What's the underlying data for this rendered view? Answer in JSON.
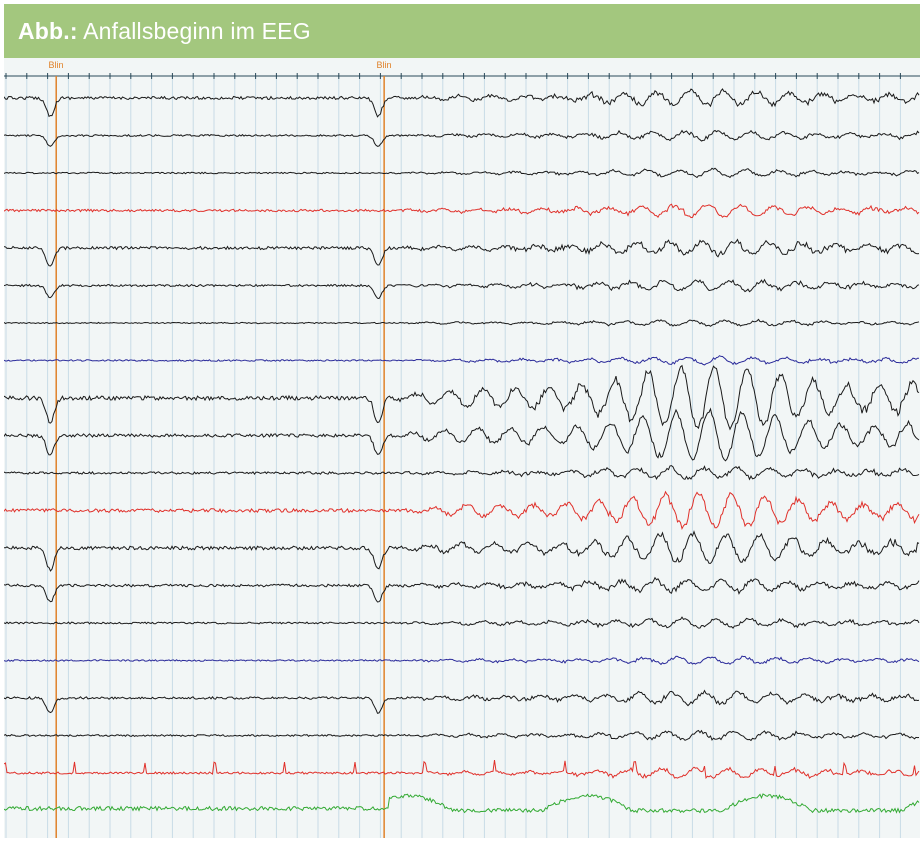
{
  "header": {
    "title_bold": "Abb.:",
    "title_rest": " Anfallsbeginn im EEG",
    "background_color": "#a3c77e",
    "text_color": "#ffffff"
  },
  "eeg": {
    "marker_label": "Blin",
    "markers": [
      {
        "label": "Blin",
        "time_fraction": 0.057
      },
      {
        "label": "Blin",
        "time_fraction": 0.415
      }
    ],
    "seizure_onset_fraction": 0.42,
    "channel_count": 20,
    "channel_colors": [
      "#1a1a1a",
      "#1a1a1a",
      "#1a1a1a",
      "#e0302a",
      "#1a1a1a",
      "#1a1a1a",
      "#1a1a1a",
      "#2a2a9a",
      "#1a1a1a",
      "#1a1a1a",
      "#1a1a1a",
      "#e0302a",
      "#1a1a1a",
      "#1a1a1a",
      "#1a1a1a",
      "#2a2a9a",
      "#1a1a1a",
      "#1a1a1a",
      "#e0302a",
      "#33aa33"
    ],
    "marker_color": "#e0822a",
    "grid_color": "#c8dbe6",
    "background_color": "#f2f6f6"
  }
}
